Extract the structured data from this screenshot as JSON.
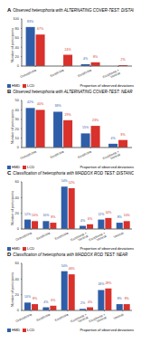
{
  "chart_data": [
    {
      "type": "bar",
      "annotations": [
        "A"
      ],
      "title": "Observed heterophoria with ALTERNATING COVER-TEST: DISTANCE",
      "y_label": "Number of participants",
      "x_label": "Proportion of observed deviations",
      "categories": [
        "Orthophoria",
        "Esophoria",
        "Exophoria",
        "Exophoria + Vertical"
      ],
      "series": [
        {
          "name": "HMD",
          "color": "#2f5ea8",
          "values": [
            83,
            0,
            4,
            0
          ],
          "value_labels": [
            "83%",
            "0%",
            "4%",
            "0%"
          ]
        },
        {
          "name": "LCD",
          "color": "#d9312b",
          "values": [
            67,
            24,
            8,
            2
          ],
          "value_labels": [
            "67%",
            "24%",
            "8%",
            "2%"
          ]
        }
      ],
      "ylim": [
        0,
        100
      ],
      "yticks": [
        0,
        20,
        40,
        60,
        80,
        100
      ],
      "data_labels": true,
      "legend": "bottom left",
      "grid": false
    },
    {
      "type": "bar",
      "annotations": [
        "B"
      ],
      "title": "Observed heterophoria with ALTERNATING COVER-TEST: NEAR",
      "y_label": "Number of participants",
      "x_label": "Proportion of observed deviations",
      "categories": [
        "Orthophoria",
        "Esophoria",
        "Exophoria",
        "Exophoria + Vertical"
      ],
      "series": [
        {
          "name": "HMD",
          "color": "#2f5ea8",
          "values": [
            42,
            38,
            15,
            4
          ],
          "value_labels": [
            "42%",
            "38%",
            "15%",
            "4%"
          ]
        },
        {
          "name": "LCD",
          "color": "#d9312b",
          "values": [
            40,
            29,
            23,
            8
          ],
          "value_labels": [
            "40%",
            "29%",
            "23%",
            "8%"
          ]
        }
      ],
      "ylim": [
        0,
        50
      ],
      "yticks": [
        0,
        10,
        20,
        30,
        40,
        50
      ],
      "data_labels": true,
      "legend": "bottom left",
      "grid": false
    },
    {
      "type": "bar",
      "annotations": [
        "C"
      ],
      "title": "Classification of heterophoria with MADDOX ROD TEST: DISTANCE",
      "y_label": "Number of participants",
      "x_label": "Proportion of observed deviations",
      "categories": [
        "Orthophoria",
        "Esophoria",
        "Exophoria",
        "Esophoria + Vertical",
        "Exophoria + Vertical",
        "Vertical"
      ],
      "series": [
        {
          "name": "HMD",
          "color": "#2f5ea8",
          "values": [
            12,
            10,
            54,
            4,
            12,
            8
          ],
          "value_labels": [
            "12%",
            "10%",
            "54%",
            "4%",
            "12%",
            "8%"
          ]
        },
        {
          "name": "LCD",
          "color": "#d9312b",
          "values": [
            10,
            8,
            52,
            6,
            14,
            10
          ],
          "value_labels": [
            "10%",
            "8%",
            "52%",
            "6%",
            "14%",
            "10%"
          ]
        }
      ],
      "ylim": [
        0,
        60
      ],
      "yticks": [
        0,
        20,
        40,
        60
      ],
      "data_labels": true,
      "legend": "bottom left",
      "grid": false
    },
    {
      "type": "bar",
      "annotations": [
        "D"
      ],
      "title": "Classification of heterophoria with MADDOX ROD TEST: NEAR",
      "y_label": "Number of participants",
      "x_label": "Proportion of observed deviations",
      "categories": [
        "Orthophoria",
        "Esophoria",
        "Exophoria",
        "Esophoria + Vertical",
        "Exophoria + Vertical",
        "Vertical"
      ],
      "series": [
        {
          "name": "HMD",
          "color": "#2f5ea8",
          "values": [
            10,
            4,
            50,
            2,
            26,
            8
          ],
          "value_labels": [
            "10%",
            "4%",
            "50%",
            "2%",
            "26%",
            "8%"
          ]
        },
        {
          "name": "LCD",
          "color": "#d9312b",
          "values": [
            8,
            6,
            46,
            4,
            28,
            8
          ],
          "value_labels": [
            "8%",
            "6%",
            "46%",
            "4%",
            "28%",
            "8%"
          ]
        }
      ],
      "ylim": [
        0,
        60
      ],
      "yticks": [
        0,
        20,
        40,
        60
      ],
      "data_labels": true,
      "legend": "bottom left",
      "grid": false
    }
  ]
}
